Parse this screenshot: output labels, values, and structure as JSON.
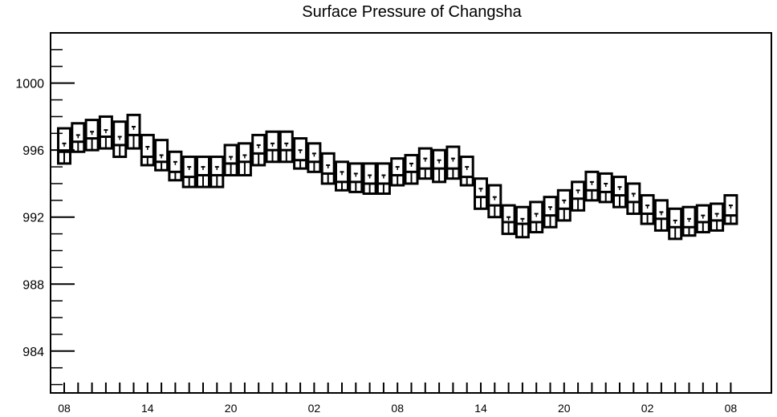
{
  "chart_data": {
    "type": "boxplot",
    "title": "Surface Pressure of Changsha",
    "xlabel": "",
    "ylabel": "",
    "ylim": [
      981.5,
      1003
    ],
    "y_ticks": [
      984,
      988,
      992,
      996,
      1000
    ],
    "y_tick_labels": [
      "984",
      "988",
      "992",
      "996",
      "1000"
    ],
    "x_tick_labels": [
      "08",
      "14",
      "20",
      "02",
      "08",
      "14",
      "20",
      "02",
      "08"
    ],
    "x_tick_positions": [
      0,
      6,
      12,
      18,
      24,
      30,
      36,
      42,
      48
    ],
    "grid": false,
    "series": [
      {
        "x": 0,
        "values": [
          995.2,
          995.9,
          996.4,
          997.3
        ]
      },
      {
        "x": 1,
        "values": [
          995.9,
          996.5,
          996.9,
          997.6
        ]
      },
      {
        "x": 2,
        "values": [
          996.0,
          996.7,
          997.1,
          997.8
        ]
      },
      {
        "x": 3,
        "values": [
          996.1,
          996.8,
          997.2,
          998.0
        ]
      },
      {
        "x": 4,
        "values": [
          995.6,
          996.3,
          996.8,
          997.7
        ]
      },
      {
        "x": 5,
        "values": [
          996.1,
          996.9,
          997.4,
          998.1
        ]
      },
      {
        "x": 6,
        "values": [
          995.1,
          995.6,
          996.2,
          996.9
        ]
      },
      {
        "x": 7,
        "values": [
          994.8,
          995.3,
          995.7,
          996.6
        ]
      },
      {
        "x": 8,
        "values": [
          994.2,
          994.7,
          995.3,
          995.9
        ]
      },
      {
        "x": 9,
        "values": [
          993.8,
          994.4,
          995.0,
          995.6
        ]
      },
      {
        "x": 10,
        "values": [
          993.8,
          994.5,
          995.0,
          995.6
        ]
      },
      {
        "x": 11,
        "values": [
          993.8,
          994.5,
          995.0,
          995.6
        ]
      },
      {
        "x": 12,
        "values": [
          994.5,
          995.2,
          995.6,
          996.3
        ]
      },
      {
        "x": 13,
        "values": [
          994.5,
          995.3,
          995.7,
          996.4
        ]
      },
      {
        "x": 14,
        "values": [
          995.1,
          995.8,
          996.3,
          996.9
        ]
      },
      {
        "x": 15,
        "values": [
          995.3,
          996.0,
          996.4,
          997.1
        ]
      },
      {
        "x": 16,
        "values": [
          995.3,
          996.0,
          996.4,
          997.1
        ]
      },
      {
        "x": 17,
        "values": [
          994.9,
          995.4,
          996.0,
          996.7
        ]
      },
      {
        "x": 18,
        "values": [
          994.7,
          995.3,
          995.8,
          996.4
        ]
      },
      {
        "x": 19,
        "values": [
          994.0,
          994.6,
          995.1,
          995.8
        ]
      },
      {
        "x": 20,
        "values": [
          993.6,
          994.1,
          994.7,
          995.3
        ]
      },
      {
        "x": 21,
        "values": [
          993.5,
          994.1,
          994.6,
          995.2
        ]
      },
      {
        "x": 22,
        "values": [
          993.4,
          994.0,
          994.5,
          995.2
        ]
      },
      {
        "x": 23,
        "values": [
          993.4,
          994.0,
          994.5,
          995.2
        ]
      },
      {
        "x": 24,
        "values": [
          993.9,
          994.5,
          995.0,
          995.5
        ]
      },
      {
        "x": 25,
        "values": [
          994.0,
          994.7,
          995.2,
          995.7
        ]
      },
      {
        "x": 26,
        "values": [
          994.3,
          994.9,
          995.5,
          996.1
        ]
      },
      {
        "x": 27,
        "values": [
          994.1,
          994.9,
          995.4,
          996.0
        ]
      },
      {
        "x": 28,
        "values": [
          994.3,
          994.9,
          995.5,
          996.2
        ]
      },
      {
        "x": 29,
        "values": [
          993.9,
          994.4,
          995.0,
          995.6
        ]
      },
      {
        "x": 30,
        "values": [
          992.5,
          993.2,
          993.7,
          994.3
        ]
      },
      {
        "x": 31,
        "values": [
          992.0,
          992.7,
          993.2,
          993.9
        ]
      },
      {
        "x": 32,
        "values": [
          991.0,
          991.7,
          992.0,
          992.7
        ]
      },
      {
        "x": 33,
        "values": [
          990.8,
          991.6,
          991.9,
          992.6
        ]
      },
      {
        "x": 34,
        "values": [
          991.1,
          991.7,
          992.2,
          992.9
        ]
      },
      {
        "x": 35,
        "values": [
          991.4,
          992.1,
          992.6,
          993.2
        ]
      },
      {
        "x": 36,
        "values": [
          991.8,
          992.5,
          993.0,
          993.6
        ]
      },
      {
        "x": 37,
        "values": [
          992.4,
          993.1,
          993.6,
          994.1
        ]
      },
      {
        "x": 38,
        "values": [
          993.0,
          993.6,
          994.1,
          994.7
        ]
      },
      {
        "x": 39,
        "values": [
          992.9,
          993.5,
          994.0,
          994.6
        ]
      },
      {
        "x": 40,
        "values": [
          992.6,
          993.3,
          993.8,
          994.4
        ]
      },
      {
        "x": 41,
        "values": [
          992.2,
          992.9,
          993.4,
          994.0
        ]
      },
      {
        "x": 42,
        "values": [
          991.6,
          992.2,
          992.7,
          993.3
        ]
      },
      {
        "x": 43,
        "values": [
          991.2,
          991.9,
          992.3,
          993.0
        ]
      },
      {
        "x": 44,
        "values": [
          990.7,
          991.4,
          991.8,
          992.5
        ]
      },
      {
        "x": 45,
        "values": [
          990.9,
          991.4,
          991.9,
          992.6
        ]
      },
      {
        "x": 46,
        "values": [
          991.1,
          991.7,
          992.1,
          992.7
        ]
      },
      {
        "x": 47,
        "values": [
          991.2,
          991.8,
          992.2,
          992.8
        ]
      },
      {
        "x": 48,
        "values": [
          991.6,
          992.1,
          992.7,
          993.3
        ]
      }
    ]
  }
}
